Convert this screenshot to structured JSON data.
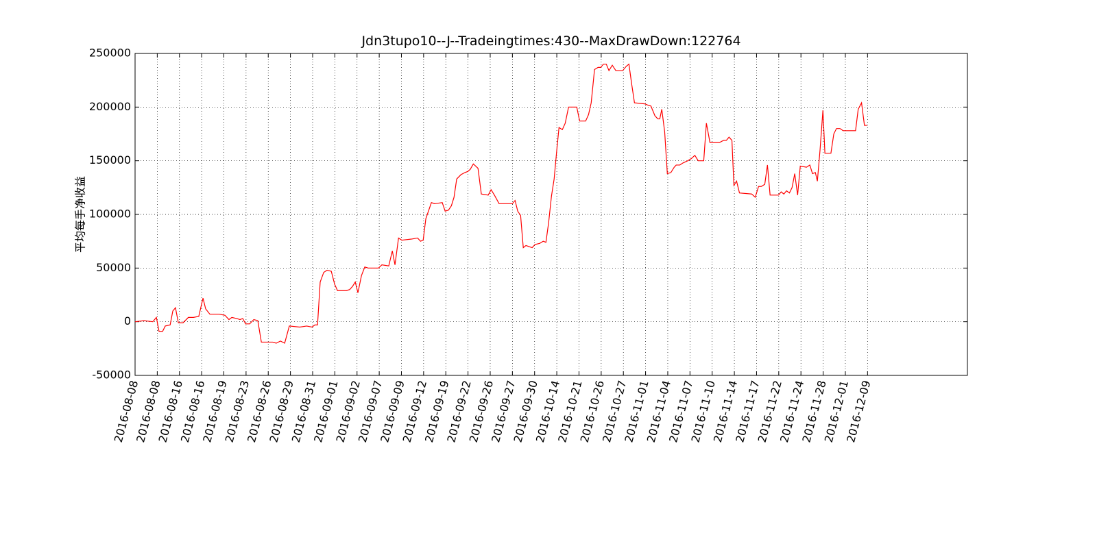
{
  "chart_data": {
    "type": "line",
    "title": "Jdn3tupo10--J--Tradeingtimes:430--MaxDrawDown:122764",
    "y_label": "平均每手净收益",
    "grid": true,
    "xlim": [
      0,
      375
    ],
    "ylim": [
      -50000,
      250000
    ],
    "yticks": [
      -50000,
      0,
      50000,
      100000,
      150000,
      200000,
      250000
    ],
    "xticks": [
      {
        "value": 0,
        "label": "2016-08-08"
      },
      {
        "value": 10,
        "label": "2016-08-08"
      },
      {
        "value": 20,
        "label": "2016-08-16"
      },
      {
        "value": 30,
        "label": "2016-08-16"
      },
      {
        "value": 40,
        "label": "2016-08-19"
      },
      {
        "value": 50,
        "label": "2016-08-23"
      },
      {
        "value": 60,
        "label": "2016-08-26"
      },
      {
        "value": 70,
        "label": "2016-08-29"
      },
      {
        "value": 80,
        "label": "2016-08-31"
      },
      {
        "value": 90,
        "label": "2016-09-01"
      },
      {
        "value": 100,
        "label": "2016-09-02"
      },
      {
        "value": 110,
        "label": "2016-09-07"
      },
      {
        "value": 120,
        "label": "2016-09-09"
      },
      {
        "value": 130,
        "label": "2016-09-12"
      },
      {
        "value": 140,
        "label": "2016-09-19"
      },
      {
        "value": 150,
        "label": "2016-09-22"
      },
      {
        "value": 160,
        "label": "2016-09-26"
      },
      {
        "value": 170,
        "label": "2016-09-27"
      },
      {
        "value": 180,
        "label": "2016-09-30"
      },
      {
        "value": 190,
        "label": "2016-10-14"
      },
      {
        "value": 200,
        "label": "2016-10-21"
      },
      {
        "value": 210,
        "label": "2016-10-26"
      },
      {
        "value": 220,
        "label": "2016-10-27"
      },
      {
        "value": 230,
        "label": "2016-11-01"
      },
      {
        "value": 240,
        "label": "2016-11-04"
      },
      {
        "value": 250,
        "label": "2016-11-07"
      },
      {
        "value": 260,
        "label": "2016-11-10"
      },
      {
        "value": 270,
        "label": "2016-11-14"
      },
      {
        "value": 280,
        "label": "2016-11-17"
      },
      {
        "value": 290,
        "label": "2016-11-22"
      },
      {
        "value": 300,
        "label": "2016-11-24"
      },
      {
        "value": 310,
        "label": "2016-11-28"
      },
      {
        "value": 320,
        "label": "2016-12-01"
      },
      {
        "value": 330,
        "label": "2016-12-09"
      }
    ],
    "color": "#ff0000",
    "x": [
      0,
      4,
      8,
      9.6,
      10.8,
      12.4,
      13.6,
      15.8,
      17,
      18.2,
      19.5,
      21.6,
      24,
      26.3,
      28.7,
      30.6,
      31.8,
      33.7,
      38,
      40.5,
      42.3,
      43.6,
      45.7,
      47.3,
      48.5,
      49.8,
      51.6,
      53.5,
      55.3,
      56.9,
      62,
      63.6,
      65.5,
      67.4,
      69.5,
      74.2,
      77.3,
      79.7,
      81,
      82.2,
      83.4,
      85,
      86.5,
      88.4,
      89.9,
      91.2,
      95.2,
      96.7,
      98,
      99.2,
      100.4,
      102,
      103.5,
      105,
      109.7,
      111.2,
      114.3,
      115.9,
      117.1,
      118.7,
      120.2,
      124.5,
      127.3,
      128.6,
      129.8,
      131,
      133.5,
      135,
      138.4,
      139.7,
      141.2,
      142.5,
      143.7,
      144.9,
      146.8,
      148.6,
      149.9,
      151,
      152.4,
      154.5,
      156,
      159.1,
      160.4,
      161.9,
      164,
      166.3,
      170,
      171.2,
      172.4,
      173.7,
      174.9,
      176.1,
      178.9,
      180.2,
      182.3,
      183.9,
      185.1,
      186.3,
      187.6,
      188.8,
      190,
      191,
      192.5,
      193.8,
      195.3,
      199,
      200.3,
      203,
      204.3,
      205.5,
      207,
      208.6,
      209.8,
      211,
      212.3,
      213.5,
      215,
      216.6,
      219.7,
      221.3,
      222.5,
      223.7,
      225,
      229.6,
      230.8,
      232.4,
      234.2,
      235.5,
      236.4,
      237.3,
      238.6,
      239.8,
      241.4,
      242.9,
      243.8,
      245.4,
      246.9,
      249,
      250.6,
      252.2,
      253.7,
      256.2,
      257.4,
      259,
      263.3,
      265.2,
      266.4,
      267.6,
      268.9,
      269.8,
      271,
      272.3,
      277.8,
      279.4,
      280.9,
      282.1,
      283.7,
      284.9,
      286.1,
      289.9,
      291.1,
      292.3,
      293.5,
      294.8,
      296,
      297.2,
      298.5,
      299.7,
      302.5,
      304,
      305.2,
      306.5,
      307.4,
      308.6,
      309.9,
      310.8,
      313.5,
      314.8,
      316,
      317.6,
      319,
      324.6,
      325.8,
      327.3,
      328.6,
      329.8
    ],
    "values": [
      0,
      1000,
      0,
      4000,
      -9000,
      -9000,
      -4000,
      -3000,
      10000,
      13000,
      -1000,
      -1000,
      4000,
      4000,
      5000,
      22000,
      12000,
      7000,
      7000,
      6000,
      2000,
      4000,
      3000,
      2000,
      3000,
      -2000,
      -2000,
      2000,
      1000,
      -19000,
      -19000,
      -20000,
      -18000,
      -20000,
      -4000,
      -5000,
      -4000,
      -5000,
      -3000,
      -3000,
      37000,
      46000,
      48000,
      47000,
      35000,
      29000,
      29000,
      30000,
      33000,
      37000,
      27000,
      43000,
      51000,
      50000,
      50000,
      53000,
      52000,
      66000,
      53000,
      78000,
      76000,
      77000,
      78000,
      75000,
      76000,
      96000,
      111000,
      110000,
      111000,
      103000,
      104000,
      108000,
      116000,
      133000,
      137000,
      139000,
      140000,
      142000,
      147000,
      143000,
      119000,
      118000,
      123000,
      118000,
      110000,
      110000,
      110000,
      113000,
      103000,
      99000,
      69000,
      71000,
      69000,
      72000,
      73000,
      75000,
      74000,
      92000,
      117000,
      133000,
      160000,
      181000,
      179000,
      185000,
      200000,
      200000,
      187000,
      187000,
      193000,
      204000,
      235000,
      237000,
      237000,
      240000,
      240000,
      234000,
      239000,
      234000,
      234000,
      238000,
      240000,
      222000,
      204000,
      203000,
      202000,
      201000,
      192000,
      189000,
      189000,
      198000,
      177000,
      138000,
      139000,
      144000,
      146000,
      146000,
      148000,
      150000,
      152000,
      155000,
      150000,
      150000,
      185000,
      167000,
      167000,
      169000,
      169000,
      172000,
      169000,
      127000,
      131000,
      120000,
      119000,
      116000,
      126000,
      126000,
      128000,
      146000,
      118000,
      118000,
      121000,
      119000,
      122000,
      120000,
      125000,
      138000,
      118000,
      145000,
      144000,
      146000,
      138000,
      139000,
      131000,
      160000,
      197000,
      157000,
      157000,
      175000,
      180000,
      180000,
      178000,
      178000,
      198000,
      204000,
      183000,
      183000
    ]
  }
}
